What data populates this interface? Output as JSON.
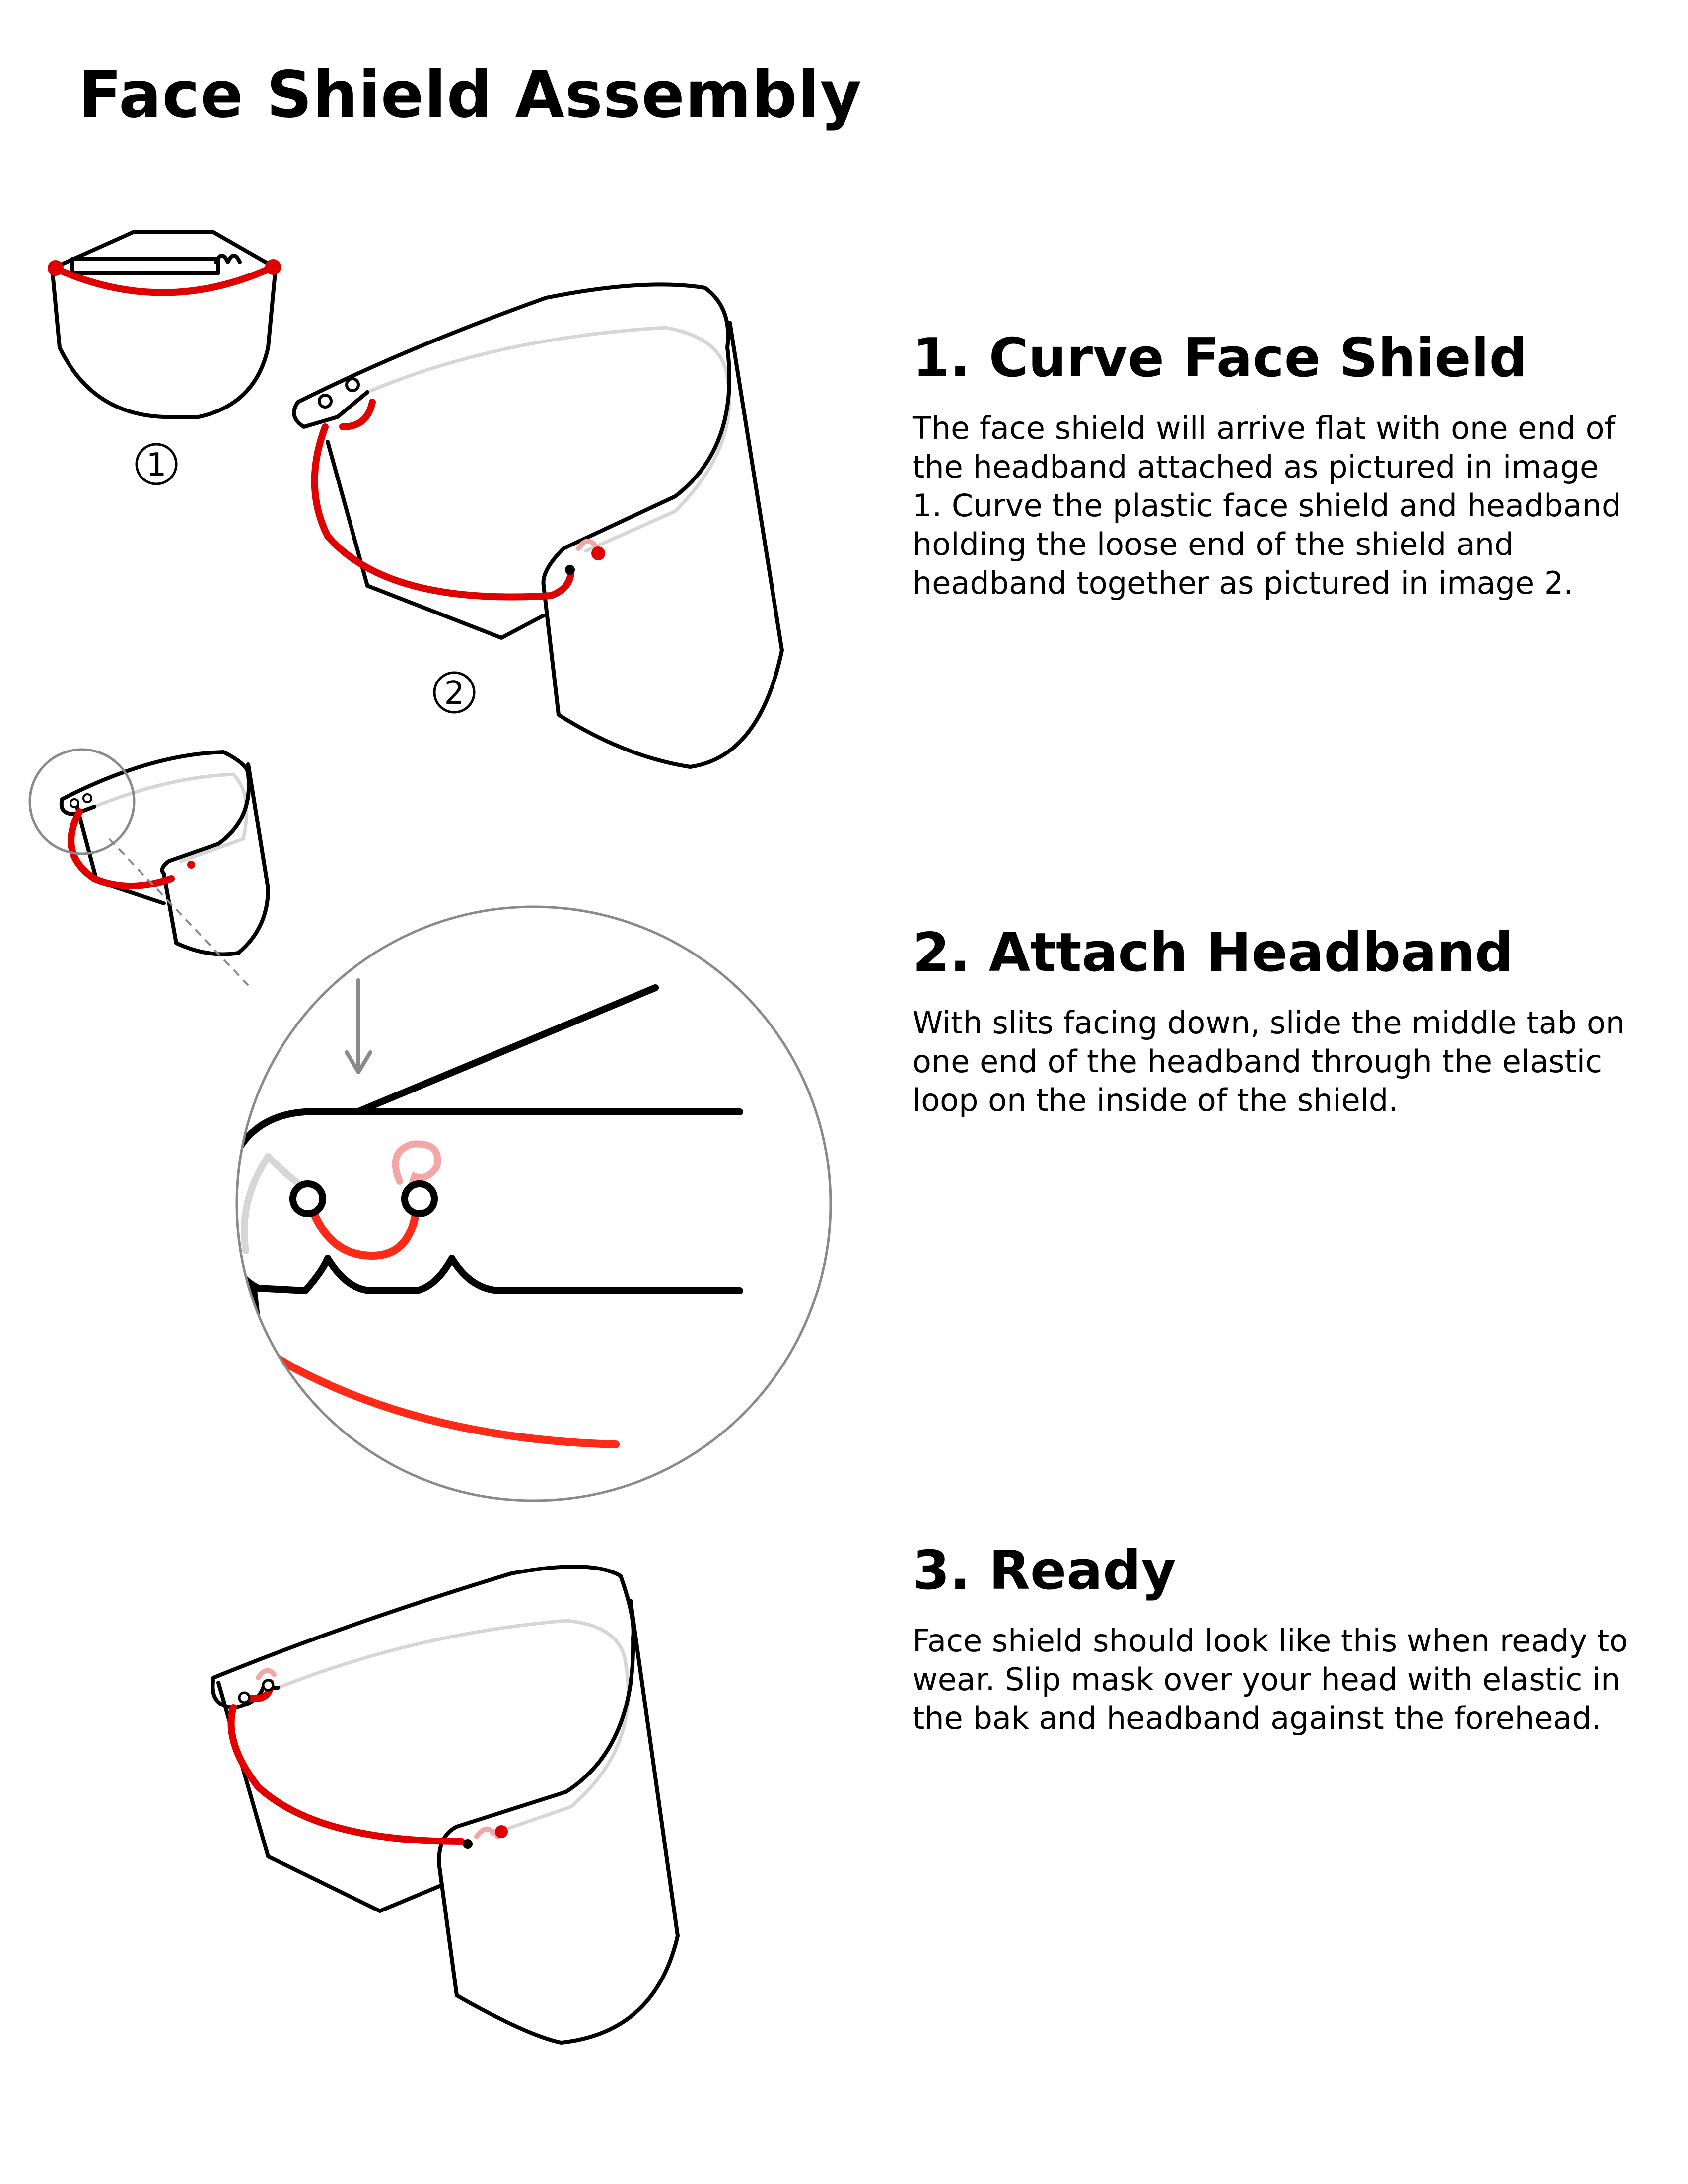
{
  "title": "Face Shield Assembly",
  "steps": [
    {
      "heading": "1. Curve Face Shield",
      "body": "The face shield will arrive flat with one end of the headband attached as pictured in image 1. Curve the plastic face shield and headband holding the loose end of the shield and headband together as pictured in image 2."
    },
    {
      "heading": "2. Attach Headband",
      "body": "With slits facing down, slide the middle tab on one end of the headband through the elastic loop on the inside of the shield."
    },
    {
      "heading": "3. Ready",
      "body": "Face shield should look like this when ready to wear. Slip mask over your head with elastic in the bak and headband against the forehead."
    }
  ],
  "figure_labels": {
    "image_1": "1",
    "image_2": "2"
  },
  "colors": {
    "outline": "#000000",
    "elastic": "#e00000",
    "elastic_hidden": "#f4a6a6",
    "headband_inner": "#d6d6d6",
    "zoom_circle": "#888888"
  }
}
